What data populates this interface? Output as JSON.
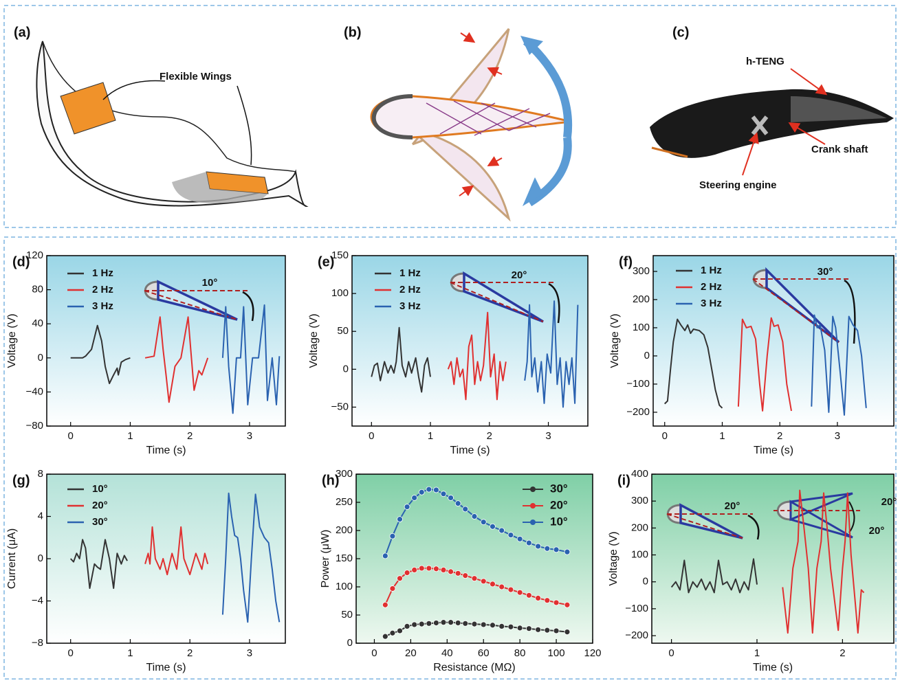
{
  "illustrations": {
    "a": {
      "label": "(a)",
      "callout": "Flexible Wings"
    },
    "b": {
      "label": "(b)"
    },
    "c": {
      "label": "(c)",
      "callouts": [
        "h-TENG",
        "Crank shaft",
        "Steering engine"
      ]
    }
  },
  "chart_data": [
    {
      "type": "line",
      "label": "(d)",
      "xlabel": "Time (s)",
      "ylabel": "Voltage (V)",
      "xlim": [
        -0.4,
        3.6
      ],
      "ylim": [
        -80,
        120
      ],
      "xticks": [
        0,
        1,
        2,
        3
      ],
      "yticks": [
        {
          "value": -80,
          "label": "−80"
        },
        {
          "value": -40,
          "label": "−40"
        },
        0,
        40,
        80,
        120
      ],
      "annotations": [
        "10°"
      ],
      "series": [
        {
          "name": "1 Hz",
          "color": "#333333",
          "x": [
            0,
            0.2,
            0.25,
            0.35,
            0.45,
            0.52,
            0.58,
            0.65,
            0.72,
            0.78,
            0.8,
            0.85,
            0.92,
            1.0
          ],
          "values": [
            0,
            0,
            2,
            10,
            38,
            20,
            -10,
            -30,
            -20,
            -12,
            -20,
            -5,
            -2,
            0
          ]
        },
        {
          "name": "2 Hz",
          "color": "#e03030",
          "x": [
            1.25,
            1.4,
            1.5,
            1.55,
            1.6,
            1.65,
            1.75,
            1.85,
            1.97,
            2.02,
            2.07,
            2.15,
            2.2,
            2.3
          ],
          "values": [
            0,
            2,
            48,
            10,
            -20,
            -52,
            -10,
            0,
            48,
            5,
            -38,
            -15,
            -20,
            0
          ]
        },
        {
          "name": "3 Hz",
          "color": "#2a62b0",
          "x": [
            2.55,
            2.6,
            2.65,
            2.72,
            2.78,
            2.85,
            2.9,
            2.97,
            3.05,
            3.15,
            3.25,
            3.3,
            3.38,
            3.45,
            3.5
          ],
          "values": [
            0,
            60,
            -10,
            -65,
            0,
            0,
            60,
            -55,
            0,
            0,
            62,
            -50,
            0,
            -55,
            2
          ]
        }
      ]
    },
    {
      "type": "line",
      "label": "(e)",
      "xlabel": "Time (s)",
      "ylabel": "Voltage (V)",
      "xlim": [
        -0.33,
        3.67
      ],
      "ylim": [
        -75,
        150
      ],
      "xticks": [
        0,
        1,
        2,
        3
      ],
      "yticks": [
        {
          "value": -50,
          "label": "−50"
        },
        0,
        50,
        100,
        150
      ],
      "annotations": [
        "20°"
      ],
      "series": [
        {
          "name": "1 Hz",
          "color": "#333333",
          "x": [
            0,
            0.05,
            0.1,
            0.15,
            0.22,
            0.28,
            0.33,
            0.38,
            0.42,
            0.47,
            0.52,
            0.58,
            0.63,
            0.68,
            0.75,
            0.8,
            0.85,
            0.9,
            0.95,
            1.0
          ],
          "values": [
            -10,
            5,
            8,
            -15,
            10,
            -5,
            5,
            -5,
            10,
            55,
            5,
            -10,
            10,
            -5,
            15,
            -10,
            -30,
            5,
            15,
            -10
          ]
        },
        {
          "name": "2 Hz",
          "color": "#e03030",
          "x": [
            1.3,
            1.35,
            1.4,
            1.45,
            1.5,
            1.55,
            1.6,
            1.65,
            1.7,
            1.75,
            1.8,
            1.85,
            1.9,
            1.97,
            2.02,
            2.08,
            2.13,
            2.18,
            2.23,
            2.28
          ],
          "values": [
            0,
            10,
            -20,
            15,
            -10,
            0,
            -40,
            30,
            45,
            -20,
            10,
            -15,
            5,
            75,
            -10,
            20,
            -40,
            10,
            -15,
            10
          ]
        },
        {
          "name": "3 Hz",
          "color": "#2a62b0",
          "x": [
            2.6,
            2.64,
            2.68,
            2.72,
            2.77,
            2.82,
            2.88,
            2.93,
            2.98,
            3.04,
            3.1,
            3.15,
            3.2,
            3.25,
            3.3,
            3.35,
            3.4,
            3.45,
            3.5
          ],
          "values": [
            -15,
            10,
            85,
            -10,
            15,
            -30,
            10,
            -45,
            20,
            -5,
            90,
            -20,
            15,
            -50,
            10,
            -20,
            15,
            -45,
            85
          ]
        }
      ]
    },
    {
      "type": "line",
      "label": "(f)",
      "xlabel": "Time (s)",
      "ylabel": "Voltage (V)",
      "xlim": [
        -0.2,
        3.98
      ],
      "ylim": [
        -249,
        356
      ],
      "xticks": [
        0,
        1,
        2,
        3
      ],
      "yticks": [
        {
          "value": -200,
          "label": "−200"
        },
        {
          "value": -100,
          "label": "−100"
        },
        0,
        100,
        200,
        300
      ],
      "annotations": [
        "30°"
      ],
      "series": [
        {
          "name": "1 Hz",
          "color": "#333333",
          "x": [
            0,
            0.05,
            0.1,
            0.15,
            0.22,
            0.28,
            0.35,
            0.4,
            0.45,
            0.5,
            0.6,
            0.68,
            0.75,
            0.82,
            0.88,
            0.95,
            1.0
          ],
          "values": [
            -170,
            -160,
            -50,
            50,
            130,
            110,
            90,
            110,
            80,
            95,
            90,
            75,
            30,
            -50,
            -120,
            -175,
            -185
          ]
        },
        {
          "name": "2 Hz",
          "color": "#e03030",
          "x": [
            1.28,
            1.35,
            1.42,
            1.5,
            1.58,
            1.65,
            1.7,
            1.78,
            1.85,
            1.9,
            1.97,
            2.05,
            2.12,
            2.2
          ],
          "values": [
            -180,
            130,
            100,
            105,
            60,
            -100,
            -195,
            0,
            135,
            105,
            110,
            50,
            -100,
            -195
          ]
        },
        {
          "name": "3 Hz",
          "color": "#2a62b0",
          "x": [
            2.55,
            2.6,
            2.65,
            2.7,
            2.78,
            2.85,
            2.92,
            2.97,
            3.05,
            3.12,
            3.2,
            3.27,
            3.35,
            3.42,
            3.5
          ],
          "values": [
            -180,
            145,
            100,
            110,
            20,
            -200,
            140,
            100,
            -60,
            -210,
            140,
            110,
            90,
            0,
            -185
          ]
        }
      ]
    },
    {
      "type": "line",
      "label": "(g)",
      "xlabel": "Time (s)",
      "ylabel": "Current (μA)",
      "xlim": [
        -0.4,
        3.6
      ],
      "ylim": [
        -8,
        8
      ],
      "xticks": [
        0,
        1,
        2,
        3
      ],
      "yticks": [
        {
          "value": -8,
          "label": "−8"
        },
        {
          "value": -4,
          "label": "−4"
        },
        0,
        4,
        8
      ],
      "annotations": [],
      "series": [
        {
          "name": "10°",
          "color": "#333333",
          "x": [
            0,
            0.05,
            0.1,
            0.15,
            0.2,
            0.25,
            0.32,
            0.4,
            0.45,
            0.5,
            0.58,
            0.65,
            0.72,
            0.78,
            0.85,
            0.9,
            0.95
          ],
          "values": [
            0,
            -0.3,
            0.5,
            0,
            1.8,
            1,
            -2.8,
            -0.5,
            -0.8,
            -1,
            1.8,
            0,
            -2.8,
            0.5,
            -0.5,
            0.3,
            -0.2
          ]
        },
        {
          "name": "20°",
          "color": "#e03030",
          "x": [
            1.25,
            1.3,
            1.33,
            1.37,
            1.42,
            1.5,
            1.55,
            1.62,
            1.7,
            1.78,
            1.85,
            1.9,
            2.0,
            2.1,
            2.2,
            2.25,
            2.3
          ],
          "values": [
            -0.5,
            0.5,
            -0.5,
            3,
            0,
            -1,
            0,
            -1.5,
            0.5,
            -1,
            3,
            0,
            -1.5,
            0.5,
            -1,
            0.5,
            -0.5
          ]
        },
        {
          "name": "30°",
          "color": "#2a62b0",
          "x": [
            2.55,
            2.6,
            2.65,
            2.7,
            2.75,
            2.8,
            2.85,
            2.9,
            2.97,
            3.03,
            3.1,
            3.17,
            3.25,
            3.32,
            3.38,
            3.44,
            3.5
          ],
          "values": [
            -5.3,
            0,
            6.2,
            4,
            2.2,
            2,
            0,
            -3,
            -6,
            0,
            6.1,
            3,
            2,
            1.5,
            -1,
            -4,
            -6
          ]
        }
      ]
    },
    {
      "type": "line",
      "markers": true,
      "label": "(h)",
      "xlabel": "Resistance (MΩ)",
      "ylabel": "Power (μW)",
      "xlim": [
        -10,
        120
      ],
      "ylim": [
        0,
        300
      ],
      "xticks": [
        0,
        20,
        40,
        60,
        80,
        100,
        120
      ],
      "yticks": [
        0,
        50,
        100,
        150,
        200,
        250,
        300
      ],
      "annotations": [],
      "series": [
        {
          "name": "30°",
          "color": "#333333",
          "x": [
            6,
            10,
            14,
            18,
            22,
            26,
            30,
            34,
            38,
            42,
            46,
            50,
            55,
            60,
            65,
            70,
            75,
            80,
            85,
            90,
            95,
            100,
            106
          ],
          "values": [
            12,
            18,
            22,
            30,
            33,
            34,
            35,
            36,
            37,
            37,
            36,
            35,
            34,
            33,
            32,
            30,
            29,
            27,
            26,
            24,
            23,
            22,
            20
          ]
        },
        {
          "name": "20°",
          "color": "#e03030",
          "x": [
            6,
            10,
            14,
            18,
            22,
            26,
            30,
            34,
            38,
            42,
            46,
            50,
            55,
            60,
            65,
            70,
            75,
            80,
            85,
            90,
            95,
            100,
            106
          ],
          "values": [
            68,
            97,
            115,
            125,
            130,
            133,
            133,
            132,
            130,
            127,
            124,
            120,
            115,
            110,
            105,
            100,
            95,
            90,
            85,
            80,
            76,
            72,
            68
          ]
        },
        {
          "name": "10°",
          "color": "#2a62b0",
          "x": [
            6,
            10,
            14,
            18,
            22,
            26,
            30,
            34,
            38,
            42,
            46,
            50,
            55,
            60,
            65,
            70,
            75,
            80,
            85,
            90,
            95,
            100,
            106
          ],
          "values": [
            155,
            190,
            220,
            242,
            258,
            268,
            273,
            272,
            265,
            258,
            248,
            238,
            225,
            215,
            207,
            200,
            192,
            185,
            178,
            172,
            168,
            166,
            162
          ]
        }
      ]
    },
    {
      "type": "line",
      "label": "(i)",
      "xlabel": "Time (s)",
      "ylabel": "Voltage (V)",
      "xlim": [
        -0.23,
        2.6
      ],
      "ylim": [
        -228,
        400
      ],
      "xticks": [
        0,
        1,
        2
      ],
      "yticks": [
        {
          "value": -200,
          "label": "−200"
        },
        {
          "value": -100,
          "label": "−100"
        },
        0,
        100,
        200,
        300,
        400
      ],
      "annotations": [
        "20°",
        "20°",
        "20°"
      ],
      "series": [
        {
          "color": "#333333",
          "x": [
            0,
            0.05,
            0.1,
            0.15,
            0.2,
            0.25,
            0.3,
            0.35,
            0.4,
            0.45,
            0.5,
            0.55,
            0.6,
            0.65,
            0.7,
            0.75,
            0.8,
            0.85,
            0.9,
            0.96,
            1.0
          ],
          "values": [
            -20,
            0,
            -30,
            80,
            -40,
            0,
            -20,
            10,
            -30,
            0,
            -40,
            80,
            -10,
            0,
            -30,
            10,
            -40,
            0,
            -30,
            85,
            -10
          ]
        },
        {
          "color": "#e03030",
          "x": [
            1.3,
            1.36,
            1.42,
            1.48,
            1.5,
            1.55,
            1.6,
            1.65,
            1.7,
            1.75,
            1.78,
            1.82,
            1.86,
            1.95,
            2.0,
            2.03,
            2.06,
            2.1,
            2.18,
            2.22,
            2.25
          ],
          "values": [
            -20,
            -190,
            50,
            150,
            340,
            200,
            50,
            -190,
            50,
            150,
            330,
            200,
            50,
            -180,
            50,
            150,
            330,
            100,
            -190,
            -30,
            -40
          ]
        }
      ]
    }
  ]
}
